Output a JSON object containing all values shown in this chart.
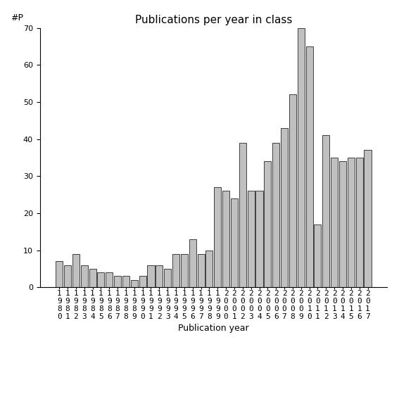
{
  "title": "Publications per year in class",
  "xlabel": "Publication year",
  "ylabel": "#P",
  "years": [
    1980,
    1981,
    1982,
    1983,
    1984,
    1985,
    1986,
    1987,
    1988,
    1989,
    1990,
    1991,
    1992,
    1993,
    1994,
    1995,
    1996,
    1997,
    1998,
    1999,
    2000,
    2001,
    2002,
    2003,
    2004,
    2005,
    2006,
    2007,
    2008,
    2009,
    2010,
    2011,
    2012,
    2013,
    2014,
    2015,
    2016,
    2017
  ],
  "values": [
    7,
    6,
    9,
    6,
    5,
    4,
    4,
    3,
    3,
    2,
    3,
    6,
    6,
    5,
    9,
    9,
    13,
    9,
    10,
    27,
    26,
    24,
    39,
    26,
    26,
    34,
    39,
    43,
    52,
    70,
    65,
    17,
    41,
    35,
    34,
    35,
    35,
    37
  ],
  "bar_color": "#c0c0c0",
  "bar_edge_color": "#000000",
  "ylim": [
    0,
    70
  ],
  "yticks": [
    0,
    10,
    20,
    30,
    40,
    50,
    60,
    70
  ],
  "bg_color": "#ffffff",
  "title_fontsize": 11,
  "label_fontsize": 9,
  "tick_fontsize": 8
}
